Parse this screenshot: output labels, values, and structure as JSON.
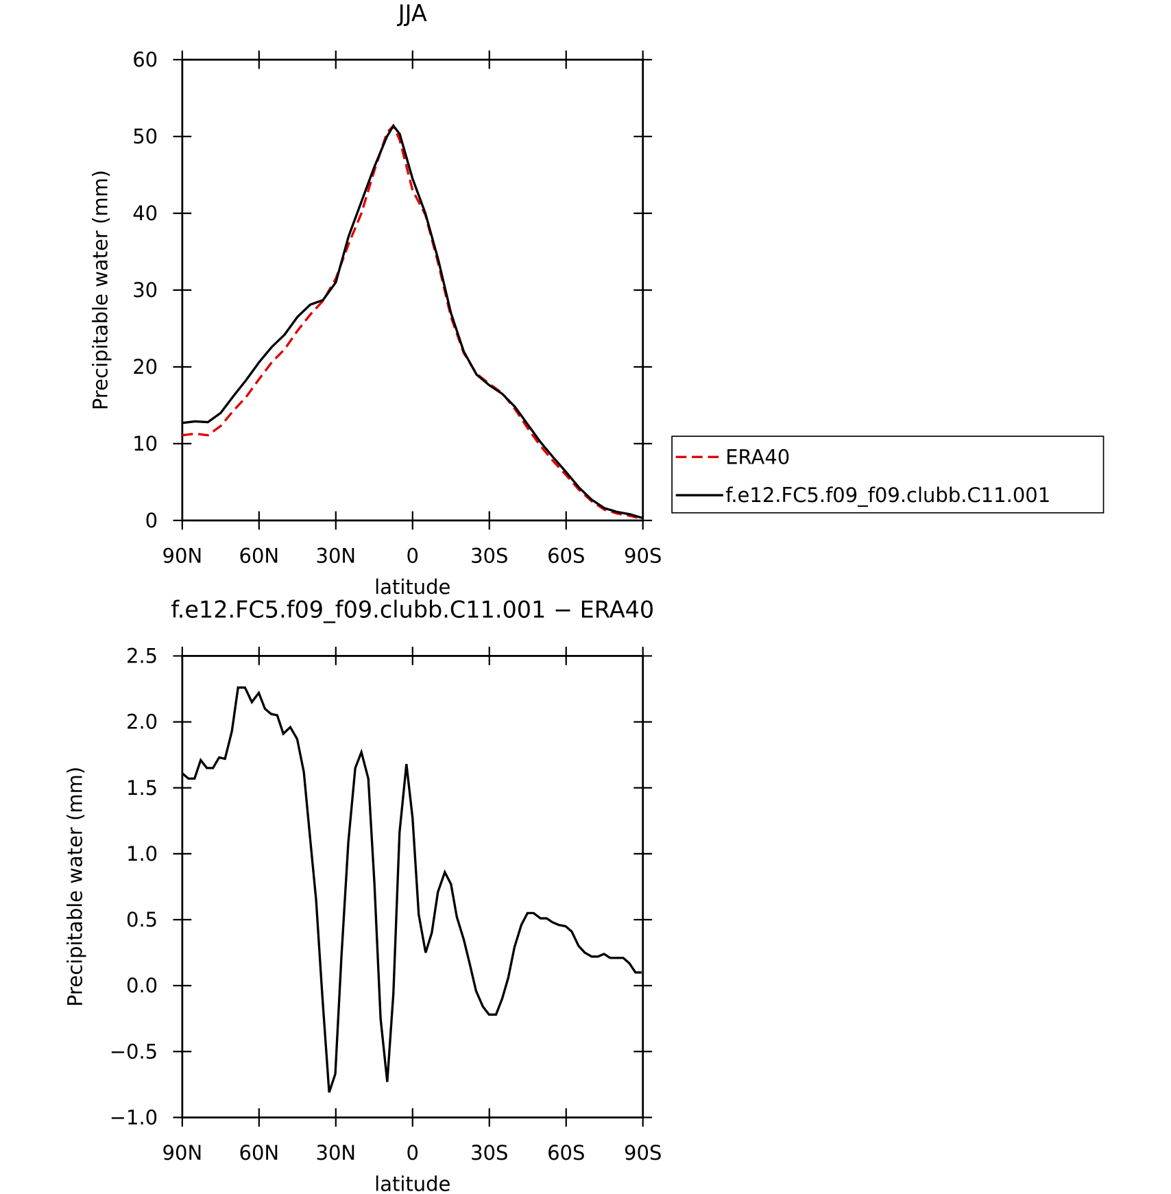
{
  "chart_data": [
    {
      "type": "line",
      "title": "JJA",
      "x_label": "latitude",
      "y_label": "Precipitable water (mm)",
      "x": [
        90,
        85,
        80,
        75,
        70,
        65,
        60,
        55,
        50,
        45,
        40,
        35,
        30,
        25,
        20,
        15,
        10,
        7.5,
        5,
        0,
        -5,
        -10,
        -15,
        -20,
        -25,
        -30,
        -35,
        -40,
        -45,
        -50,
        -55,
        -60,
        -65,
        -70,
        -75,
        -80,
        -85,
        -90
      ],
      "series": [
        {
          "name": "ERA40",
          "color": "#e00000",
          "style": "dashed",
          "values": [
            11.1,
            11.3,
            11.1,
            12.3,
            14.3,
            16.1,
            18.4,
            20.6,
            22.3,
            24.7,
            26.8,
            28.6,
            31.5,
            36,
            40,
            45.5,
            50.5,
            51.4,
            49.5,
            43,
            39.8,
            33.5,
            26.5,
            21.8,
            19.1,
            17.8,
            16.6,
            14.5,
            12,
            9.7,
            7.7,
            5.9,
            4,
            2.5,
            1.4,
            0.9,
            0.6,
            0.2
          ]
        },
        {
          "name": "f.e12.FC5.f09_f09.clubb.C11.001",
          "color": "#000000",
          "style": "solid",
          "values": [
            12.7,
            12.9,
            12.8,
            14,
            16.2,
            18.3,
            20.6,
            22.6,
            24.2,
            26.5,
            28.1,
            28.7,
            31,
            37,
            41.5,
            46,
            50,
            51.4,
            50.3,
            44.5,
            40,
            34,
            27,
            22,
            19,
            17.6,
            16.5,
            14.8,
            12.5,
            10.2,
            8.2,
            6.3,
            4.3,
            2.7,
            1.6,
            1.1,
            0.8,
            0.3
          ]
        }
      ],
      "xlim": [
        90,
        -90
      ],
      "xticks": [
        {
          "value": 90,
          "label": "90N"
        },
        {
          "value": 60,
          "label": "60N"
        },
        {
          "value": 30,
          "label": "30N"
        },
        0,
        {
          "value": -30,
          "label": "30S"
        },
        {
          "value": -60,
          "label": "60S"
        },
        {
          "value": -90,
          "label": "90S"
        }
      ],
      "ylim": [
        0,
        60
      ],
      "yticks": [
        0,
        10,
        20,
        30,
        40,
        50,
        60
      ],
      "legend": "right"
    },
    {
      "type": "line",
      "title": "f.e12.FC5.f09_f09.clubb.C11.001 − ERA40",
      "x_label": "latitude",
      "y_label": "Precipitable water (mm)",
      "x": [
        90,
        87.6,
        85.2,
        82.8,
        80.4,
        78,
        75.6,
        73.3,
        70.6,
        68.2,
        65.5,
        62.8,
        60.1,
        57.7,
        55.3,
        52.9,
        50.5,
        47.8,
        45.1,
        42.5,
        40.1,
        37.7,
        35.3,
        32.6,
        30.2,
        27.8,
        25.1,
        22.4,
        20,
        17.3,
        14.9,
        12.5,
        9.9,
        7.5,
        5.1,
        2.4,
        0,
        -2.4,
        -5.1,
        -7.5,
        -9.9,
        -12.6,
        -15,
        -17.3,
        -20,
        -22.4,
        -24.8,
        -27.5,
        -29.9,
        -32.6,
        -35,
        -37.4,
        -39.8,
        -42.5,
        -44.9,
        -47.3,
        -50,
        -52.4,
        -54.7,
        -57.1,
        -59.8,
        -62.2,
        -64.9,
        -67.3,
        -70,
        -72.4,
        -74.8,
        -77.2,
        -79.9,
        -82.3,
        -84.7,
        -87.1,
        -89.5
      ],
      "series": [
        {
          "color": "#000000",
          "style": "solid",
          "values": [
            1.61,
            1.57,
            1.57,
            1.71,
            1.65,
            1.65,
            1.73,
            1.72,
            1.93,
            2.26,
            2.26,
            2.15,
            2.22,
            2.1,
            2.06,
            2.05,
            1.91,
            1.96,
            1.87,
            1.62,
            1.13,
            0.65,
            -0.07,
            -0.81,
            -0.67,
            0.22,
            1.09,
            1.65,
            1.77,
            1.57,
            0.77,
            -0.25,
            -0.73,
            -0.06,
            1.16,
            1.68,
            1.27,
            0.54,
            0.25,
            0.4,
            0.71,
            0.86,
            0.77,
            0.52,
            0.35,
            0.16,
            -0.04,
            -0.16,
            -0.22,
            -0.22,
            -0.1,
            0.06,
            0.29,
            0.46,
            0.55,
            0.55,
            0.51,
            0.51,
            0.48,
            0.46,
            0.45,
            0.41,
            0.3,
            0.25,
            0.22,
            0.22,
            0.24,
            0.21,
            0.21,
            0.21,
            0.17,
            0.1,
            0.1
          ]
        }
      ],
      "xlim": [
        90,
        -90
      ],
      "xticks": [
        {
          "value": 90,
          "label": "90N"
        },
        {
          "value": 60,
          "label": "60N"
        },
        {
          "value": 30,
          "label": "30N"
        },
        0,
        {
          "value": -30,
          "label": "30S"
        },
        {
          "value": -60,
          "label": "60S"
        },
        {
          "value": -90,
          "label": "90S"
        }
      ],
      "ylim": [
        -1,
        2.5
      ],
      "yticks": [
        {
          "value": -1,
          "label": "−1.0"
        },
        {
          "value": -0.5,
          "label": "−0.5"
        },
        {
          "value": 0,
          "label": "0.0"
        },
        0.5,
        {
          "value": 1,
          "label": "1.0"
        },
        1.5,
        {
          "value": 2,
          "label": "2.0"
        },
        2.5
      ]
    }
  ]
}
